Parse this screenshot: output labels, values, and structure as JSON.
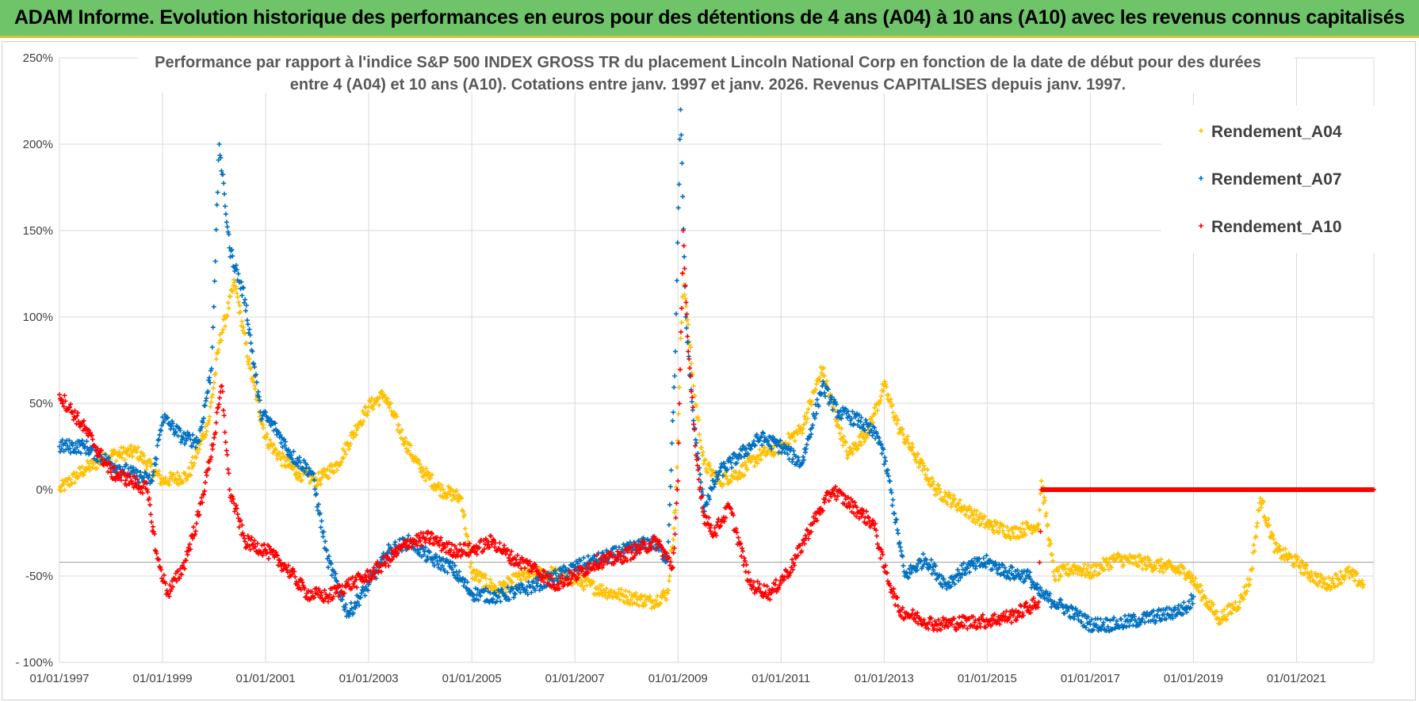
{
  "banner": {
    "title": "ADAM Informe. Evolution historique des performances en euros pour des détentions de 4 ans (A04) à 10 ans (A10) avec les revenus connus capitalisés"
  },
  "colors": {
    "banner_bg": "#6fc46a",
    "A04": "#ffc000",
    "A07": "#0070c0",
    "A10": "#ff0000",
    "grid": "#d9d9d9"
  },
  "chart_data": {
    "type": "scatter",
    "title_line1": "Performance par rapport à l'indice S&P 500 INDEX GROSS TR  du placement Lincoln National Corp en fonction de la date de début pour des durées",
    "title_line2": "entre 4 (A04) et 10 ans (A10).  Cotations entre janv. 1997 et janv. 2026. Revenus CAPITALISES depuis janv. 1997.",
    "xlabel": "",
    "ylabel": "",
    "xlim": [
      1997.0,
      2022.5
    ],
    "ylim": [
      -100,
      250
    ],
    "ytick_values": [
      -100,
      -50,
      0,
      50,
      100,
      150,
      200,
      250
    ],
    "ytick_labels": [
      "- 100%",
      "-50%",
      "0%",
      "50%",
      "100%",
      "150%",
      "200%",
      "250%"
    ],
    "xtick_values": [
      1997,
      1999,
      2001,
      2003,
      2005,
      2007,
      2009,
      2011,
      2013,
      2015,
      2017,
      2019,
      2021
    ],
    "xtick_labels": [
      "01/01/1997",
      "01/01/1999",
      "01/01/2001",
      "01/01/2003",
      "01/01/2005",
      "01/01/2007",
      "01/01/2009",
      "01/01/2011",
      "01/01/2013",
      "01/01/2015",
      "01/01/2017",
      "01/01/2019",
      "01/01/2021"
    ],
    "grid": true,
    "legend_position": "top-right",
    "marker": "+",
    "series": [
      {
        "name": "Rendement_A04",
        "x": [
          1997.0,
          1997.5,
          1998.0,
          1998.5,
          1999.0,
          1999.5,
          1999.9,
          2000.1,
          2000.4,
          2000.7,
          2001.0,
          2001.3,
          2001.6,
          2002.0,
          2002.4,
          2002.8,
          2003.0,
          2003.3,
          2003.7,
          2004.0,
          2004.4,
          2004.8,
          2005.0,
          2005.5,
          2006.0,
          2006.5,
          2007.0,
          2007.5,
          2008.0,
          2008.5,
          2008.8,
          2008.95,
          2009.1,
          2009.3,
          2009.5,
          2009.8,
          2010.2,
          2010.6,
          2011.0,
          2011.4,
          2011.8,
          2012.0,
          2012.3,
          2012.7,
          2013.0,
          2013.3,
          2013.7,
          2014.0,
          2014.5,
          2015.0,
          2015.5,
          2016.0,
          2016.05,
          2016.3,
          2016.7,
          2017.0,
          2017.5,
          2018.0,
          2018.5,
          2018.9,
          2019.2,
          2019.5,
          2019.9,
          2020.1,
          2020.3,
          2020.6,
          2021.0,
          2021.3,
          2021.6,
          2022.0,
          2022.3
        ],
        "y": [
          0,
          12,
          20,
          22,
          5,
          8,
          40,
          85,
          120,
          70,
          30,
          18,
          10,
          5,
          15,
          38,
          48,
          55,
          28,
          12,
          0,
          -5,
          -48,
          -58,
          -50,
          -48,
          -52,
          -58,
          -62,
          -65,
          -60,
          -12,
          125,
          60,
          15,
          5,
          10,
          20,
          25,
          35,
          70,
          48,
          20,
          35,
          60,
          35,
          15,
          0,
          -10,
          -20,
          -25,
          -20,
          5,
          -50,
          -45,
          -48,
          -40,
          -42,
          -45,
          -48,
          -62,
          -75,
          -65,
          -52,
          -5,
          -35,
          -42,
          -50,
          -55,
          -48,
          -55
        ]
      },
      {
        "name": "Rendement_A07",
        "x": [
          1997.0,
          1997.5,
          1998.0,
          1998.5,
          1998.8,
          1999.0,
          1999.4,
          1999.7,
          1999.95,
          2000.1,
          2000.3,
          2000.6,
          2000.9,
          2001.2,
          2001.5,
          2001.9,
          2002.2,
          2002.6,
          2003.0,
          2003.4,
          2003.8,
          2004.2,
          2004.6,
          2005.0,
          2005.5,
          2006.0,
          2006.5,
          2007.0,
          2007.5,
          2008.0,
          2008.5,
          2008.8,
          2008.95,
          2009.05,
          2009.15,
          2009.3,
          2009.5,
          2009.8,
          2010.2,
          2010.6,
          2011.0,
          2011.4,
          2011.8,
          2012.1,
          2012.5,
          2012.9,
          2013.1,
          2013.4,
          2013.8,
          2014.2,
          2014.6,
          2015.0,
          2015.4,
          2015.8,
          2016.0,
          2016.3,
          2016.7,
          2017.0,
          2017.5,
          2018.0,
          2018.5,
          2018.9,
          2019.0
        ],
        "y": [
          25,
          25,
          15,
          8,
          5,
          42,
          30,
          28,
          70,
          200,
          140,
          110,
          45,
          35,
          20,
          10,
          -40,
          -72,
          -55,
          -35,
          -30,
          -40,
          -45,
          -60,
          -62,
          -58,
          -52,
          -45,
          -40,
          -35,
          -30,
          -40,
          80,
          220,
          100,
          40,
          -10,
          10,
          20,
          30,
          25,
          15,
          60,
          45,
          40,
          30,
          5,
          -50,
          -40,
          -55,
          -45,
          -42,
          -48,
          -50,
          -60,
          -65,
          -72,
          -78,
          -78,
          -75,
          -72,
          -68,
          -62
        ]
      },
      {
        "name": "Rendement_A10",
        "x": [
          1997.0,
          1997.5,
          1998.0,
          1998.4,
          1998.7,
          1998.9,
          1999.1,
          1999.4,
          1999.7,
          2000.0,
          2000.15,
          2000.3,
          2000.6,
          2001.0,
          2001.4,
          2001.8,
          2002.2,
          2002.6,
          2003.0,
          2003.4,
          2003.8,
          2004.2,
          2004.6,
          2005.0,
          2005.4,
          2005.8,
          2006.2,
          2006.6,
          2007.0,
          2007.4,
          2007.8,
          2008.2,
          2008.6,
          2008.9,
          2009.0,
          2009.1,
          2009.2,
          2009.35,
          2009.5,
          2009.7,
          2010.0,
          2010.4,
          2010.8,
          2011.2,
          2011.6,
          2012.0,
          2012.4,
          2012.8,
          2013.0,
          2013.3,
          2013.7,
          2014.0,
          2014.5,
          2015.0,
          2015.5,
          2016.0,
          2016.05,
          2017.0,
          2018.0,
          2019.0,
          2020.0,
          2021.0,
          2022.0,
          2022.5
        ],
        "y": [
          55,
          35,
          10,
          5,
          0,
          -40,
          -60,
          -45,
          -15,
          30,
          60,
          0,
          -30,
          -35,
          -45,
          -60,
          -62,
          -55,
          -50,
          -40,
          -30,
          -28,
          -35,
          -35,
          -30,
          -40,
          -45,
          -55,
          -50,
          -42,
          -40,
          -35,
          -30,
          -45,
          5,
          150,
          80,
          20,
          -15,
          -25,
          -10,
          -55,
          -60,
          -45,
          -20,
          0,
          -10,
          -20,
          -45,
          -70,
          -75,
          -78,
          -77,
          -76,
          -73,
          -65,
          0,
          0,
          0,
          0,
          0,
          0,
          0,
          0
        ]
      }
    ]
  }
}
